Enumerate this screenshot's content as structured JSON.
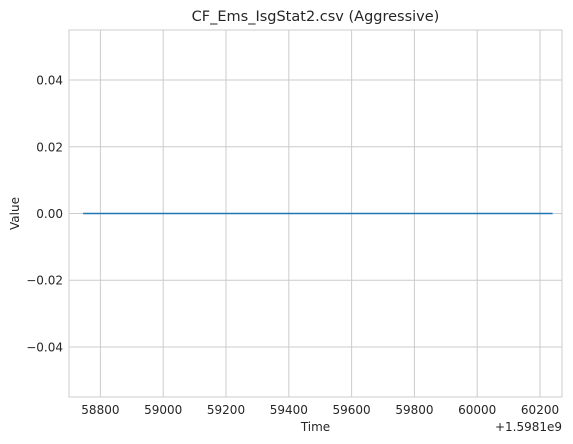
{
  "chart_data": {
    "type": "line",
    "title": "CF_Ems_IsgStat2.csv (Aggressive)",
    "xlabel": "Time",
    "ylabel": "Value",
    "x_offset_label": "+1.5981e9",
    "xlim": [
      58700,
      60270
    ],
    "ylim": [
      -0.055,
      0.055
    ],
    "xticks": [
      58800,
      59000,
      59200,
      59400,
      59600,
      59800,
      60000,
      60200
    ],
    "xtick_labels": [
      "58800",
      "59000",
      "59200",
      "59400",
      "59600",
      "59800",
      "60000",
      "60200"
    ],
    "yticks": [
      -0.04,
      -0.02,
      0.0,
      0.02,
      0.04
    ],
    "ytick_labels": [
      "−0.04",
      "−0.02",
      "0.00",
      "0.02",
      "0.04"
    ],
    "grid": true,
    "series": [
      {
        "color": "#1f77b4",
        "x": [
          58745,
          60240
        ],
        "y": [
          0.0,
          0.0
        ]
      }
    ]
  }
}
